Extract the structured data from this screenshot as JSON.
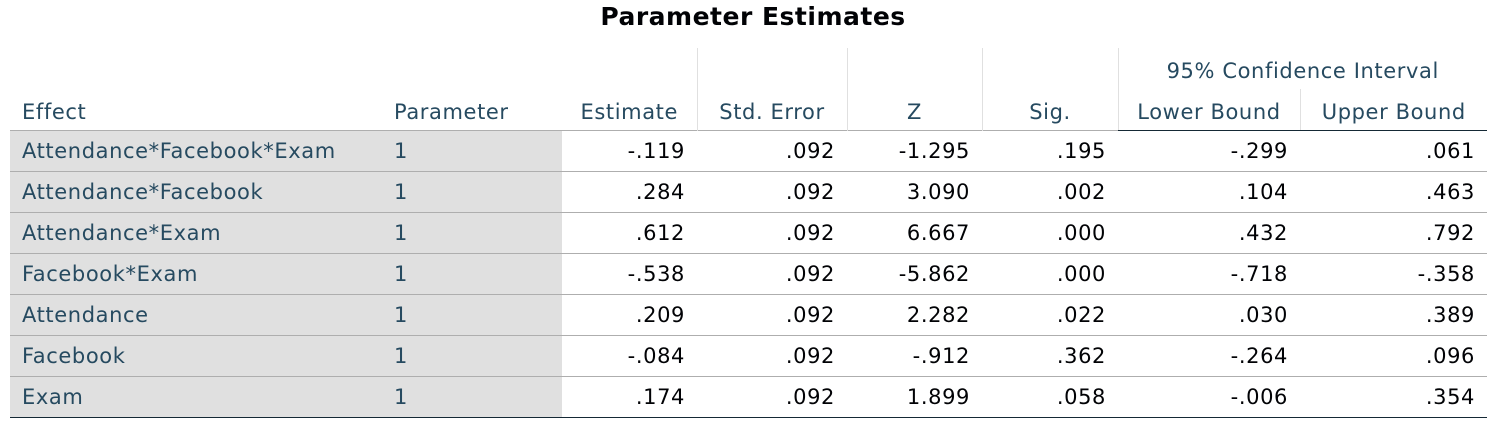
{
  "title": "Parameter Estimates",
  "table": {
    "group_header": "95% Confidence Interval",
    "columns": [
      "Effect",
      "Parameter",
      "Estimate",
      "Std. Error",
      "Z",
      "Sig.",
      "Lower Bound",
      "Upper Bound"
    ],
    "rows": [
      [
        "Attendance*Facebook*Exam",
        "1",
        "-.119",
        ".092",
        "-1.295",
        ".195",
        "-.299",
        ".061"
      ],
      [
        "Attendance*Facebook",
        "1",
        ".284",
        ".092",
        "3.090",
        ".002",
        ".104",
        ".463"
      ],
      [
        "Attendance*Exam",
        "1",
        ".612",
        ".092",
        "6.667",
        ".000",
        ".432",
        ".792"
      ],
      [
        "Facebook*Exam",
        "1",
        "-.538",
        ".092",
        "-5.862",
        ".000",
        "-.718",
        "-.358"
      ],
      [
        "Attendance",
        "1",
        ".209",
        ".092",
        "2.282",
        ".022",
        ".030",
        ".389"
      ],
      [
        "Facebook",
        "1",
        "-.084",
        ".092",
        "-.912",
        ".362",
        "-.264",
        ".096"
      ],
      [
        "Exam",
        "1",
        ".174",
        ".092",
        "1.899",
        ".058",
        "-.006",
        ".354"
      ]
    ]
  }
}
